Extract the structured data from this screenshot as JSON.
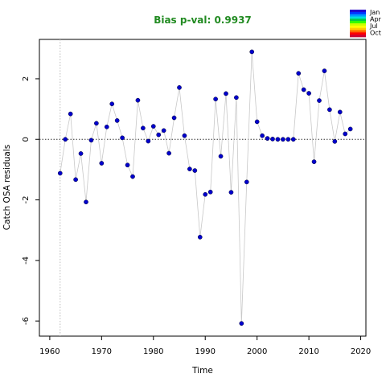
{
  "chart_data": {
    "type": "scatter",
    "title": "Bias p-val: 0.9937",
    "title_color": "#228B22",
    "xlabel": "Time",
    "ylabel": "Catch OSA residuals",
    "xlim": [
      1958,
      2021
    ],
    "ylim": [
      -6.5,
      3.3
    ],
    "x_ticks": [
      1960,
      1970,
      1980,
      1990,
      2000,
      2010,
      2020
    ],
    "y_ticks": [
      -6,
      -4,
      -2,
      0,
      2
    ],
    "reference_line_y": 0,
    "reference_line_x": 1962,
    "grid": false,
    "point_color": "#0000CD",
    "line_color": "#C8C8C8",
    "series": [
      {
        "x": [
          1962,
          1963,
          1964,
          1965,
          1966,
          1967,
          1968,
          1969,
          1970,
          1971,
          1972,
          1973,
          1974,
          1975,
          1976,
          1977,
          1978,
          1979,
          1980,
          1981,
          1982,
          1983,
          1984,
          1985,
          1986,
          1987,
          1988,
          1989,
          1990,
          1991,
          1992,
          1993,
          1994,
          1995,
          1996,
          1997,
          1998,
          1999,
          2000,
          2001,
          2002,
          2003,
          2004,
          2005,
          2006,
          2007,
          2008,
          2009,
          2010,
          2011,
          2012,
          2013,
          2014,
          2015,
          2016,
          2017,
          2018
        ],
        "y": [
          -1.12,
          0.0,
          0.84,
          -1.33,
          -0.47,
          -2.07,
          -0.03,
          0.53,
          -0.79,
          0.41,
          1.17,
          0.62,
          0.05,
          -0.85,
          -1.23,
          1.29,
          0.37,
          -0.06,
          0.43,
          0.15,
          0.29,
          -0.46,
          0.71,
          1.71,
          0.12,
          -0.98,
          -1.03,
          -3.23,
          -1.82,
          -1.74,
          1.33,
          -0.56,
          1.51,
          -1.75,
          1.38,
          -6.08,
          -1.41,
          2.89,
          0.58,
          0.12,
          0.03,
          0.01,
          0.0,
          0.0,
          0.0,
          0.0,
          2.18,
          1.64,
          1.52,
          -0.74,
          1.28,
          2.26,
          0.98,
          -0.07,
          0.9,
          0.18,
          0.34
        ]
      }
    ],
    "legend": {
      "placement": "top-right",
      "entries": [
        "Jan",
        "Apr",
        "Jul",
        "Oct"
      ],
      "colors": [
        "#2200CC",
        "#0033FF",
        "#0099FF",
        "#00DDDD",
        "#00CC44",
        "#33FF00",
        "#CCFF00",
        "#FFFF00",
        "#FFCC00",
        "#FF6600",
        "#FF0000",
        "#CC0033"
      ]
    }
  }
}
